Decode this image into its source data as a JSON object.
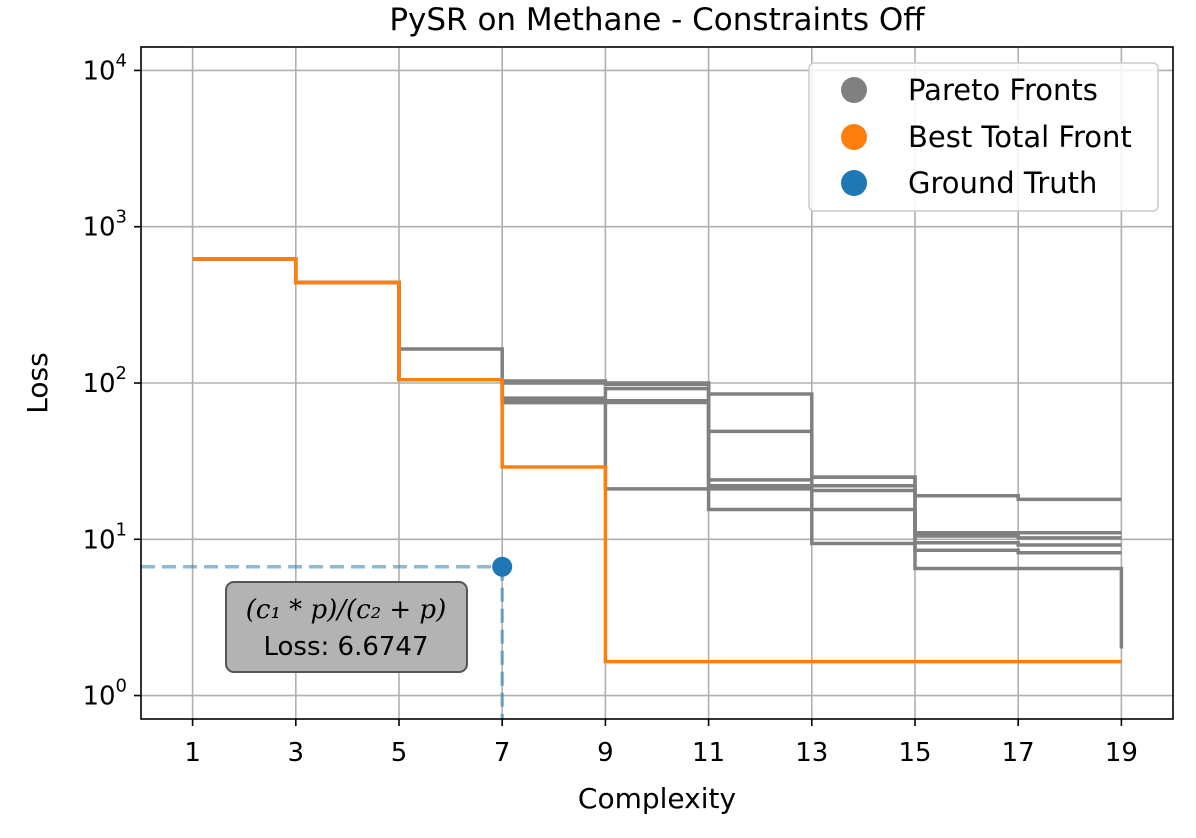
{
  "chart_data": {
    "type": "line",
    "title": "PySR on Methane - Constraints Off",
    "xlabel": "Complexity",
    "ylabel": "Loss",
    "yscale": "log",
    "xlim": [
      0,
      20
    ],
    "ylim_log10": [
      -0.15,
      4.15
    ],
    "x_ticks": [
      1,
      3,
      5,
      7,
      9,
      11,
      13,
      15,
      17,
      19
    ],
    "x_tick_labels": [
      "1",
      "3",
      "5",
      "7",
      "9",
      "11",
      "13",
      "15",
      "17",
      "19"
    ],
    "y_ticks": [
      1,
      10,
      100,
      1000,
      10000
    ],
    "y_tick_labels": [
      {
        "base": "10",
        "exp": "0"
      },
      {
        "base": "10",
        "exp": "1"
      },
      {
        "base": "10",
        "exp": "2"
      },
      {
        "base": "10",
        "exp": "3"
      },
      {
        "base": "10",
        "exp": "4"
      }
    ],
    "grid": true,
    "legend": {
      "position": "top-right",
      "entries": [
        {
          "label": "Pareto Fronts",
          "color": "#808080"
        },
        {
          "label": "Best Total Front",
          "color": "#ff7f0e"
        },
        {
          "label": "Ground Truth",
          "color": "#1f77b4"
        }
      ]
    },
    "step": "post",
    "pareto_fronts": [
      {
        "x": [
          1,
          3,
          5,
          7,
          9,
          11,
          13,
          15,
          17,
          19
        ],
        "y": [
          620,
          440,
          105,
          103,
          100,
          85,
          25,
          19,
          18,
          18
        ]
      },
      {
        "x": [
          1,
          3,
          5,
          7,
          9,
          11,
          13,
          15,
          17,
          19
        ],
        "y": [
          620,
          440,
          165,
          100,
          98,
          49,
          25,
          11,
          11,
          11
        ]
      },
      {
        "x": [
          1,
          3,
          5,
          7,
          9,
          11,
          13,
          15,
          17,
          19
        ],
        "y": [
          620,
          440,
          105,
          80,
          92,
          24,
          22,
          10.5,
          10.2,
          10.2
        ]
      },
      {
        "x": [
          1,
          3,
          5,
          7,
          9,
          11,
          13,
          15,
          17,
          19
        ],
        "y": [
          620,
          440,
          105,
          77,
          77,
          22,
          20.5,
          9.5,
          9.2,
          9.2
        ]
      },
      {
        "x": [
          1,
          3,
          5,
          7,
          9,
          11,
          13,
          15,
          17,
          19
        ],
        "y": [
          620,
          440,
          105,
          75,
          75,
          21,
          9.4,
          8.5,
          8.2,
          8.2
        ]
      },
      {
        "x": [
          1,
          3,
          5,
          7,
          9,
          11,
          13,
          15,
          17,
          19
        ],
        "y": [
          620,
          440,
          105,
          75,
          21,
          15.5,
          15.5,
          6.5,
          6.5,
          2.0
        ]
      }
    ],
    "best_total_front": {
      "x": [
        1,
        3,
        5,
        7,
        9,
        19
      ],
      "y": [
        620,
        440,
        105,
        29,
        1.65,
        1.65
      ]
    },
    "ground_truth": {
      "x": 7,
      "y": 6.6747
    },
    "annotation": {
      "formula": "(c₁ * p)/(c₂ + p)",
      "loss_text": "Loss: 6.6747"
    }
  }
}
